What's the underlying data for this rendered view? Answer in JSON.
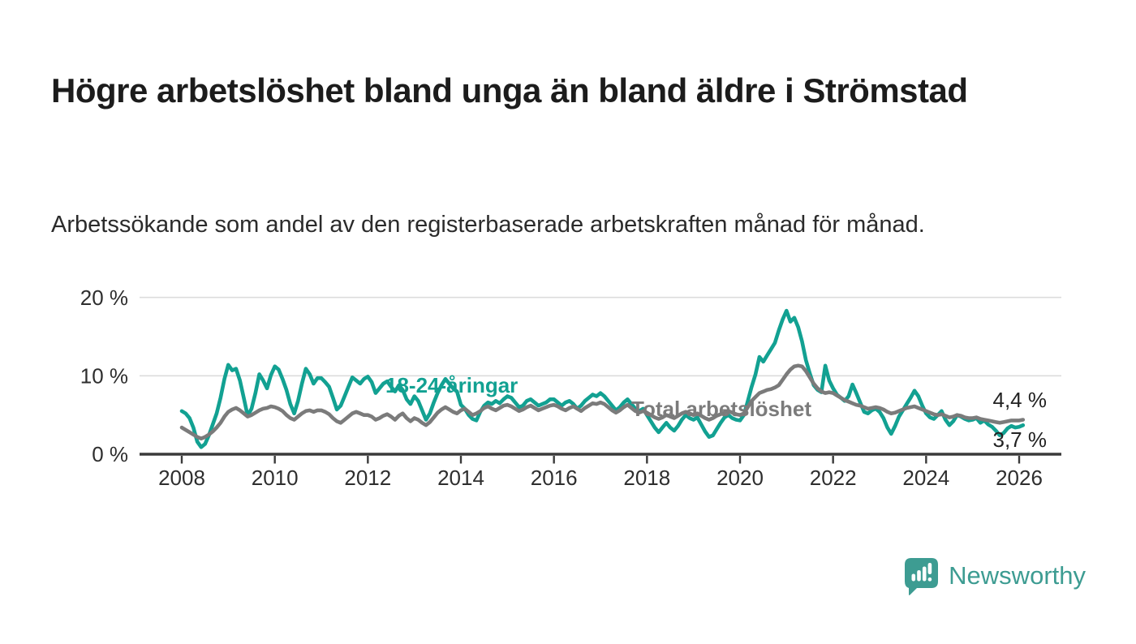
{
  "header": {
    "title": "Högre arbetslöshet bland unga än bland äldre i Strömstad",
    "subtitle": "Arbetssökande som andel av den registerbaserade arbetskraften månad för månad."
  },
  "footer": {
    "brand_name": "Newsworthy",
    "logo_icon": "newsworthy-speech-bubble-bar-chart-icon"
  },
  "colors": {
    "accent_teal": "#12a192",
    "line_total_gray": "#7b7b7b",
    "grid": "#dcdcdc",
    "axis": "#3a3a3a",
    "text_dark": "#222222",
    "logo_teal": "#3d9c92"
  },
  "chart_data": {
    "type": "line",
    "frequency": "monthly",
    "start": "2008-01",
    "end": "2026-02",
    "ylim": [
      0,
      21
    ],
    "grid": "horizontal",
    "legend_position": "inline-labels",
    "y_ticks": [
      {
        "value": 0,
        "label": "0 %"
      },
      {
        "value": 10,
        "label": "10 %"
      },
      {
        "value": 20,
        "label": "20 %"
      }
    ],
    "x_ticks": [
      "2008",
      "2010",
      "2012",
      "2014",
      "2016",
      "2018",
      "2020",
      "2022",
      "2024",
      "2026"
    ],
    "series": [
      {
        "name": "18-24-åringar",
        "color": "#12a192",
        "end_label": "3,7 %",
        "values": [
          5.5,
          5.2,
          4.6,
          3.4,
          1.6,
          0.9,
          1.3,
          2.4,
          3.8,
          5.2,
          7.2,
          9.6,
          11.4,
          10.7,
          10.9,
          9.4,
          7.2,
          4.9,
          5.8,
          7.8,
          10.2,
          9.4,
          8.4,
          10.1,
          11.2,
          10.8,
          9.6,
          8.2,
          6.4,
          5.2,
          6.8,
          9.0,
          10.9,
          10.2,
          9.0,
          9.7,
          9.7,
          9.2,
          8.6,
          7.2,
          5.7,
          6.2,
          7.4,
          8.6,
          9.8,
          9.4,
          9.0,
          9.6,
          9.9,
          9.2,
          7.8,
          8.4,
          9.0,
          9.3,
          8.6,
          8.0,
          8.8,
          8.2,
          7.0,
          6.4,
          7.4,
          6.8,
          5.6,
          4.4,
          5.2,
          6.6,
          7.8,
          8.8,
          9.6,
          9.0,
          8.4,
          8.0,
          6.3,
          5.8,
          5.0,
          4.5,
          4.3,
          5.4,
          6.2,
          6.6,
          6.4,
          6.8,
          6.5,
          7.0,
          7.4,
          7.2,
          6.6,
          6.0,
          6.2,
          6.8,
          7.0,
          6.6,
          6.2,
          6.4,
          6.6,
          7.0,
          7.0,
          6.6,
          6.2,
          6.6,
          6.8,
          6.4,
          5.8,
          6.2,
          6.8,
          7.2,
          7.6,
          7.4,
          7.8,
          7.4,
          6.8,
          6.2,
          5.6,
          6.0,
          6.6,
          7.0,
          6.4,
          5.8,
          5.5,
          5.8,
          5.0,
          4.2,
          3.4,
          2.8,
          3.4,
          4.0,
          3.4,
          3.0,
          3.6,
          4.4,
          5.0,
          4.6,
          4.4,
          4.7,
          3.8,
          2.9,
          2.2,
          2.4,
          3.2,
          4.0,
          4.7,
          5.0,
          4.6,
          4.4,
          4.3,
          5.0,
          6.8,
          8.6,
          10.2,
          12.4,
          11.8,
          12.6,
          13.4,
          14.2,
          15.8,
          17.2,
          18.3,
          16.9,
          17.4,
          16.2,
          14.4,
          12.0,
          10.3,
          8.8,
          8.2,
          7.9,
          11.3,
          9.4,
          8.4,
          7.6,
          7.2,
          6.8,
          7.4,
          8.9,
          7.8,
          6.6,
          5.4,
          5.2,
          5.6,
          5.8,
          5.4,
          4.6,
          3.4,
          2.6,
          3.6,
          4.8,
          5.6,
          6.4,
          7.2,
          8.1,
          7.4,
          6.2,
          5.2,
          4.7,
          4.5,
          5.0,
          5.5,
          4.4,
          3.7,
          4.2,
          5.0,
          4.8,
          4.5,
          4.3,
          4.4,
          4.6,
          4.0,
          4.3,
          3.8,
          3.5,
          3.0,
          2.4,
          2.7,
          3.3,
          3.6,
          3.4,
          3.5,
          3.7
        ]
      },
      {
        "name": "Total arbetslöshet",
        "color": "#7b7b7b",
        "end_label": "4,4 %",
        "values": [
          3.4,
          3.1,
          2.8,
          2.5,
          2.2,
          2.0,
          2.2,
          2.5,
          2.9,
          3.4,
          4.0,
          4.8,
          5.4,
          5.7,
          5.9,
          5.6,
          5.2,
          4.8,
          5.0,
          5.3,
          5.6,
          5.8,
          5.9,
          6.1,
          6.0,
          5.8,
          5.5,
          5.0,
          4.6,
          4.4,
          4.8,
          5.2,
          5.5,
          5.6,
          5.4,
          5.6,
          5.6,
          5.4,
          5.1,
          4.6,
          4.2,
          4.0,
          4.4,
          4.8,
          5.2,
          5.4,
          5.2,
          5.0,
          5.0,
          4.8,
          4.4,
          4.6,
          4.9,
          5.1,
          4.8,
          4.4,
          4.9,
          5.2,
          4.6,
          4.2,
          4.6,
          4.4,
          4.0,
          3.7,
          4.1,
          4.7,
          5.3,
          5.7,
          6.0,
          5.7,
          5.4,
          5.2,
          5.6,
          5.8,
          5.4,
          5.0,
          5.2,
          5.5,
          5.9,
          6.1,
          5.8,
          5.6,
          5.9,
          6.2,
          6.3,
          6.1,
          5.8,
          5.5,
          5.7,
          6.0,
          6.2,
          5.9,
          5.6,
          5.8,
          6.0,
          6.2,
          6.3,
          6.1,
          5.8,
          5.6,
          5.9,
          6.1,
          5.8,
          5.5,
          5.9,
          6.2,
          6.5,
          6.4,
          6.6,
          6.4,
          6.0,
          5.6,
          5.3,
          5.6,
          6.0,
          6.3,
          5.9,
          5.5,
          5.3,
          5.5,
          5.3,
          5.0,
          4.7,
          4.5,
          4.7,
          5.0,
          4.8,
          4.6,
          4.9,
          5.2,
          5.4,
          5.2,
          5.0,
          5.2,
          4.9,
          4.6,
          4.4,
          4.6,
          4.9,
          5.1,
          5.3,
          5.5,
          5.3,
          5.1,
          5.0,
          5.2,
          6.0,
          6.8,
          7.3,
          7.8,
          8.0,
          8.2,
          8.3,
          8.5,
          8.8,
          9.5,
          10.2,
          10.8,
          11.2,
          11.3,
          11.2,
          10.6,
          9.8,
          9.0,
          8.4,
          8.0,
          7.8,
          7.9,
          7.8,
          7.5,
          7.2,
          6.9,
          6.7,
          6.5,
          6.3,
          6.2,
          6.0,
          5.8,
          5.9,
          6.0,
          5.9,
          5.7,
          5.4,
          5.2,
          5.3,
          5.5,
          5.7,
          5.9,
          6.0,
          6.1,
          5.9,
          5.7,
          5.5,
          5.3,
          5.1,
          5.0,
          5.1,
          4.9,
          4.7,
          4.8,
          5.0,
          4.9,
          4.7,
          4.6,
          4.6,
          4.7,
          4.5,
          4.4,
          4.3,
          4.2,
          4.1,
          4.0,
          4.1,
          4.2,
          4.3,
          4.3,
          4.3,
          4.4
        ]
      }
    ]
  }
}
